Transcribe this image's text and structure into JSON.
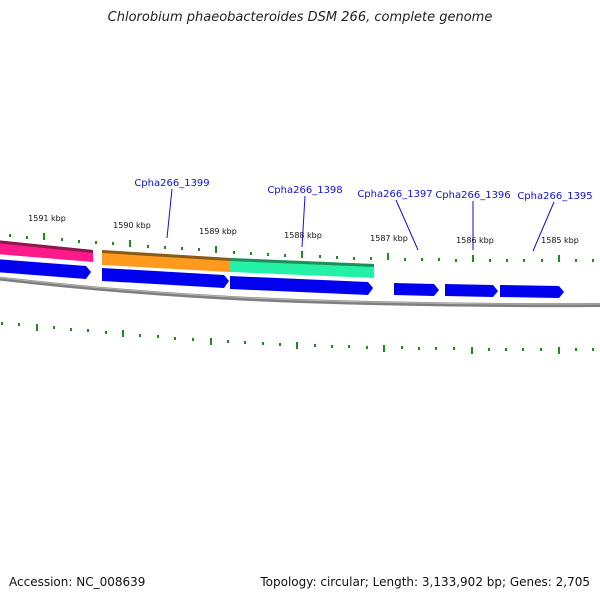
{
  "title": "Chlorobium phaeobacteroides DSM 266, complete genome",
  "accession": "Accession: NC_008639",
  "stats": "Topology: circular; Length: 3,133,902 bp; Genes: 2,705",
  "colors": {
    "backbone": "#808080",
    "gene_blue": "#0000ee",
    "tick_green": "#228b22",
    "label_blue": "#1212c8",
    "magenta": "#ff1493",
    "orange": "#ff9500",
    "teal": "#1de9a0"
  },
  "scale_labels": [
    "1591 kbp",
    "1590 kbp",
    "1589 kbp",
    "1588 kbp",
    "1587 kbp",
    "1586 kbp",
    "1585 kbp"
  ],
  "gene_labels": [
    "Cpha266_1399",
    "Cpha266_1398",
    "Cpha266_1397",
    "Cpha266_1396",
    "Cpha266_1395"
  ]
}
